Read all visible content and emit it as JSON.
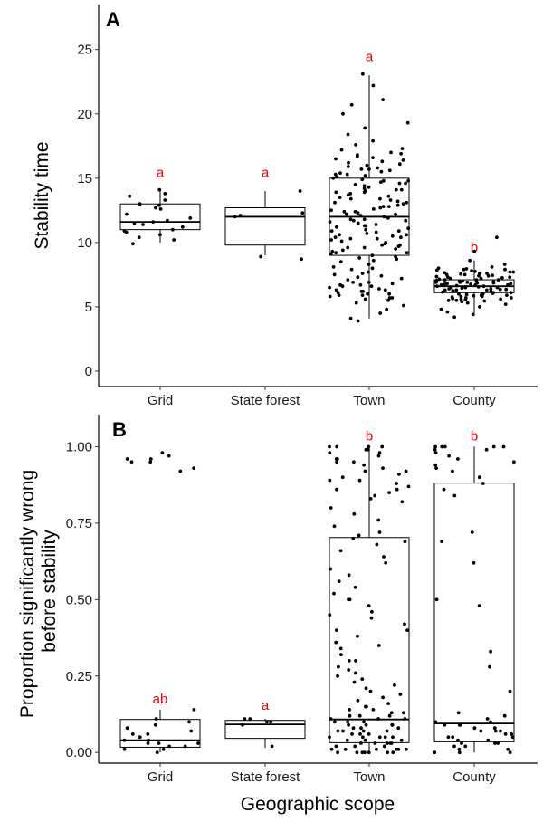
{
  "figure": {
    "xlabel": "Geographic scope"
  },
  "colors": {
    "points": "#000000",
    "box": "#000000",
    "significance": "#e8000b"
  },
  "chart_data": [
    {
      "type": "boxplot",
      "panel_label": "A",
      "ylabel": "Stability time",
      "ylim": [
        -1.2,
        28.5
      ],
      "yticks": [
        0,
        5,
        10,
        15,
        20,
        25
      ],
      "ytick_labels": [
        "0",
        "5",
        "10",
        "15",
        "20",
        "25"
      ],
      "categories": [
        "Grid",
        "State forest",
        "Town",
        "County"
      ],
      "grid": false,
      "boxes": [
        {
          "category": "Grid",
          "whisker_low": 10,
          "q1": 11,
          "median": 11.6,
          "q3": 13,
          "whisker_high": 14,
          "letter": "a",
          "letter_y": 15.1
        },
        {
          "category": "State forest",
          "whisker_low": 9,
          "q1": 9.8,
          "median": 12,
          "q3": 12.7,
          "whisker_high": 14,
          "letter": "a",
          "letter_y": 15.1
        },
        {
          "category": "Town",
          "whisker_low": 4.1,
          "q1": 9,
          "median": 12,
          "q3": 15,
          "whisker_high": 23,
          "letter": "a",
          "letter_y": 24.1
        },
        {
          "category": "County",
          "whisker_low": 4.4,
          "q1": 6.1,
          "median": 6.6,
          "q3": 7.1,
          "whisker_high": 8.6,
          "letter": "b",
          "letter_y": 9.3
        }
      ],
      "points": [
        {
          "category": "Grid",
          "values": [
            14.1,
            13.8,
            13.6,
            13.0,
            12.7,
            12.6,
            12.2,
            11.9,
            11.7,
            11.6,
            11.4,
            11.2,
            11.0,
            10.8,
            10.6,
            10.4,
            10.2,
            9.9,
            13.3,
            12.9,
            11.5,
            10.9
          ]
        },
        {
          "category": "State forest",
          "values": [
            14.0,
            12.3,
            12.0,
            8.9,
            8.7,
            12.1
          ]
        },
        {
          "category": "Town",
          "values": [
            23.1,
            22.2,
            21.1,
            20.7,
            20.0,
            19.3,
            18.9,
            18.4,
            17.9,
            17.6,
            17.2,
            17.0,
            16.8,
            16.7,
            16.5,
            16.4,
            16.2,
            16.1,
            16.0,
            15.9,
            15.8,
            15.7,
            15.6,
            15.5,
            15.4,
            15.3,
            15.2,
            15.1,
            15.0,
            14.9,
            14.8,
            14.7,
            14.6,
            14.5,
            14.4,
            14.3,
            14.2,
            14.1,
            14.0,
            13.9,
            13.8,
            13.7,
            13.6,
            13.5,
            13.4,
            13.3,
            13.2,
            13.1,
            13.0,
            12.9,
            12.8,
            12.7,
            12.6,
            12.5,
            12.4,
            12.3,
            12.2,
            12.1,
            12.0,
            11.9,
            11.8,
            11.7,
            11.6,
            11.5,
            11.4,
            11.3,
            11.2,
            11.1,
            11.0,
            10.9,
            10.8,
            10.7,
            10.6,
            10.5,
            10.4,
            10.3,
            10.2,
            10.1,
            10.0,
            9.9,
            9.8,
            9.7,
            9.6,
            9.5,
            9.4,
            9.3,
            9.2,
            9.1,
            9.0,
            8.9,
            8.7,
            8.5,
            8.3,
            8.1,
            7.9,
            7.7,
            7.5,
            7.3,
            7.1,
            6.9,
            6.8,
            6.7,
            6.6,
            6.5,
            6.4,
            6.3,
            6.2,
            6.1,
            6.0,
            5.9,
            5.8,
            5.7,
            5.6,
            5.5,
            5.3,
            5.1,
            4.8,
            4.5,
            4.1,
            3.9,
            15.3,
            14.6,
            13.9,
            13.1,
            12.4,
            11.7,
            10.9,
            10.3,
            9.6,
            8.8,
            8.0,
            7.2,
            6.6,
            6.2,
            5.9,
            16.9,
            16.3,
            15.7,
            14.1,
            12.8,
            11.3,
            10.6,
            9.8,
            7.6,
            6.9,
            6.3,
            5.7,
            17.3,
            16.6,
            14.8,
            13.4,
            12.2,
            11.8,
            10.4,
            9.2,
            8.6,
            7.4,
            6.7,
            6.0
          ]
        },
        {
          "category": "County",
          "values": [
            10.4,
            9.3,
            8.6,
            8.3,
            8.1,
            8.0,
            7.9,
            7.8,
            7.7,
            7.6,
            7.5,
            7.4,
            7.3,
            7.2,
            7.1,
            7.0,
            6.9,
            6.8,
            6.7,
            6.6,
            6.5,
            6.4,
            6.3,
            6.2,
            6.1,
            6.0,
            5.9,
            5.8,
            5.7,
            5.6,
            5.5,
            5.4,
            5.3,
            5.2,
            5.0,
            4.8,
            4.6,
            4.4,
            4.2,
            7.95,
            7.75,
            7.55,
            7.35,
            7.15,
            6.95,
            6.75,
            6.55,
            6.35,
            6.15,
            5.95,
            5.75,
            5.55,
            7.85,
            7.65,
            7.45,
            7.25,
            7.05,
            6.85,
            6.65,
            6.45,
            6.25,
            6.05,
            5.85,
            5.65,
            5.45,
            7.9,
            7.7,
            7.5,
            7.3,
            7.1,
            6.9,
            6.7,
            6.5,
            6.3,
            6.1,
            5.9,
            5.7,
            5.5,
            7.0,
            6.9,
            6.8,
            6.7,
            6.6,
            6.5,
            6.4,
            6.3,
            7.2,
            7.1,
            6.2,
            6.1,
            6.0,
            5.8,
            5.6,
            7.4,
            7.6,
            6.75,
            6.55,
            6.35,
            6.85,
            7.05
          ]
        }
      ]
    },
    {
      "type": "boxplot",
      "panel_label": "B",
      "ylabel": "Proportion significantly wrong\nbefore stability",
      "ylim": [
        -0.035,
        1.105
      ],
      "yticks": [
        0,
        0.25,
        0.5,
        0.75,
        1.0
      ],
      "ytick_labels": [
        "0.00",
        "0.25",
        "0.50",
        "0.75",
        "1.00"
      ],
      "categories": [
        "Grid",
        "State forest",
        "Town",
        "County"
      ],
      "grid": false,
      "boxes": [
        {
          "category": "Grid",
          "whisker_low": 0,
          "q1": 0.017,
          "median": 0.04,
          "q3": 0.108,
          "whisker_high": 0.14,
          "letter": "ab",
          "letter_y": 0.16
        },
        {
          "category": "State forest",
          "whisker_low": 0.015,
          "q1": 0.046,
          "median": 0.092,
          "q3": 0.105,
          "whisker_high": 0.11,
          "letter": "a",
          "letter_y": 0.14
        },
        {
          "category": "Town",
          "whisker_low": 0,
          "q1": 0.032,
          "median": 0.108,
          "q3": 0.703,
          "whisker_high": 1.0,
          "letter": "b",
          "letter_y": 1.02
        },
        {
          "category": "County",
          "whisker_low": 0,
          "q1": 0.035,
          "median": 0.095,
          "q3": 0.881,
          "whisker_high": 1.0,
          "letter": "b",
          "letter_y": 1.02
        }
      ],
      "points": [
        {
          "category": "Grid",
          "values": [
            0.98,
            0.97,
            0.96,
            0.96,
            0.95,
            0.95,
            0.93,
            0.92,
            0.14,
            0.11,
            0.1,
            0.09,
            0.08,
            0.07,
            0.06,
            0.05,
            0.05,
            0.04,
            0.04,
            0.03,
            0.03,
            0.02,
            0.02,
            0.01,
            0.01,
            0.0,
            0.06,
            0.03
          ]
        },
        {
          "category": "State forest",
          "values": [
            0.11,
            0.11,
            0.1,
            0.1,
            0.09,
            0.02
          ]
        },
        {
          "category": "Town",
          "values": [
            1.0,
            1.0,
            1.0,
            1.0,
            0.99,
            0.99,
            0.98,
            0.97,
            0.96,
            0.96,
            0.95,
            0.94,
            0.93,
            0.92,
            0.91,
            0.9,
            0.89,
            0.88,
            0.87,
            0.86,
            0.85,
            0.84,
            0.82,
            0.8,
            0.78,
            0.76,
            0.74,
            0.72,
            0.71,
            0.7,
            0.69,
            0.68,
            0.66,
            0.64,
            0.62,
            0.6,
            0.58,
            0.56,
            0.54,
            0.52,
            0.5,
            0.48,
            0.46,
            0.44,
            0.42,
            0.4,
            0.38,
            0.36,
            0.34,
            0.32,
            0.3,
            0.28,
            0.26,
            0.25,
            0.24,
            0.23,
            0.22,
            0.21,
            0.2,
            0.19,
            0.18,
            0.17,
            0.16,
            0.15,
            0.14,
            0.13,
            0.12,
            0.11,
            0.1,
            0.09,
            0.08,
            0.07,
            0.06,
            0.05,
            0.04,
            0.03,
            0.02,
            0.01,
            0.0,
            0.0,
            0.15,
            0.12,
            0.1,
            0.08,
            0.06,
            0.05,
            0.04,
            0.03,
            0.02,
            0.01,
            0.0,
            0.0,
            0.14,
            0.11,
            0.09,
            0.07,
            0.05,
            0.03,
            0.02,
            0.01,
            0.0,
            0.13,
            0.1,
            0.08,
            0.06,
            0.04,
            0.02,
            0.01,
            0.0,
            0.12,
            0.09,
            0.07,
            0.05,
            0.03,
            0.01,
            0.0,
            0.98,
            0.95,
            0.92,
            0.89,
            0.86,
            0.83,
            0.5,
            0.45,
            0.4,
            0.35,
            0.3,
            0.27,
            0.11,
            0.09,
            0.07,
            0.05,
            0.03,
            0.01
          ]
        },
        {
          "category": "County",
          "values": [
            1.0,
            1.0,
            1.0,
            1.0,
            1.0,
            0.99,
            0.99,
            0.98,
            0.97,
            0.96,
            0.95,
            0.94,
            0.93,
            0.92,
            0.9,
            0.88,
            0.86,
            0.84,
            0.72,
            0.69,
            0.62,
            0.5,
            0.48,
            0.33,
            0.28,
            0.2,
            0.13,
            0.12,
            0.11,
            0.1,
            0.1,
            0.09,
            0.09,
            0.08,
            0.08,
            0.07,
            0.07,
            0.06,
            0.06,
            0.05,
            0.05,
            0.04,
            0.04,
            0.03,
            0.03,
            0.02,
            0.02,
            0.01,
            0.01,
            0.0,
            0.0,
            0.0,
            0.09,
            0.07,
            0.05,
            0.03
          ]
        }
      ]
    }
  ]
}
